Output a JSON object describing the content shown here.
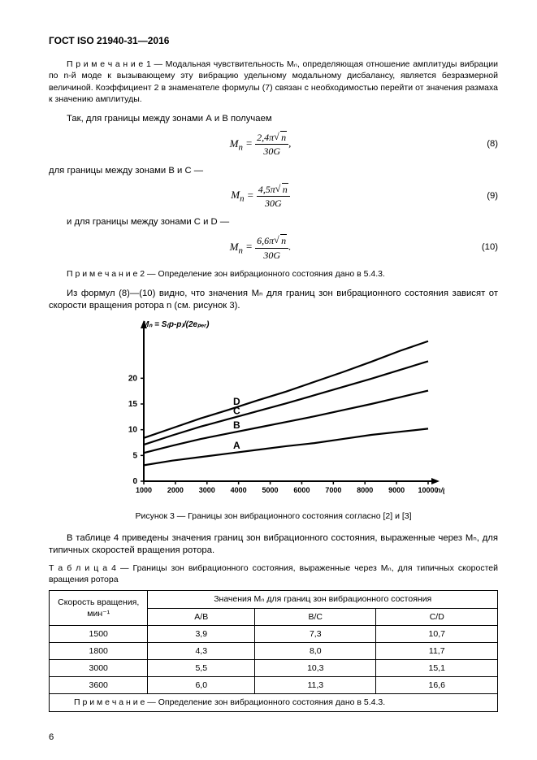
{
  "header": "ГОСТ ISO 21940-31—2016",
  "note1": "П р и м е ч а н и е  1 — Модальная чувствительность Mₙ, определяющая отношение амплитуды вибрации по n-й моде к вызывающему эту вибрацию удельному модальному дисбалансу, является безразмерной величиной. Коэффициент 2 в знаменателе формулы (7) связан с необходимостью перейти от значения размаха к значению амплитуды.",
  "p1": "Так, для границы между зонами А и В получаем",
  "eq8": {
    "label": "Mₙ =",
    "num": "2,4π",
    "n": "n",
    "den": "30G",
    "post": ",",
    "id": "(8)"
  },
  "p2": "для границы между зонами В и С —",
  "eq9": {
    "label": "Mₙ =",
    "num": "4,5π",
    "n": "n",
    "den": "30G",
    "post": "",
    "id": "(9)"
  },
  "p3": "и для границы между зонами С и D —",
  "eq10": {
    "label": "Mₙ =",
    "num": "6,6π",
    "n": "n",
    "den": "30G",
    "post": ".",
    "id": "(10)"
  },
  "note2": "П р и м е ч а н и е 2 — Определение зон вибрационного состояния дано в 5.4.3.",
  "p4": "Из формул (8)—(10) видно, что значения Mₙ для границ зон вибрационного состояния зависят от скорости вращения ротора n (см. рисунок 3).",
  "chart": {
    "ylabel_top": "Mₙ = S₍p-p₎/(2eₚₑᵣ)",
    "yticks": [
      0,
      5,
      10,
      15,
      20
    ],
    "yfont": 10,
    "xticks": [
      1000,
      2000,
      3000,
      4000,
      5000,
      6000,
      7000,
      8000,
      9000,
      10000
    ],
    "xfont": 9,
    "xunit": "n/(r/min)",
    "curve_labels": [
      "A",
      "B",
      "C",
      "D"
    ],
    "stroke": "#000000",
    "axis": "#000000",
    "curves": {
      "A": [
        [
          0,
          3.1
        ],
        [
          0.1,
          4.0
        ],
        [
          0.2,
          4.7
        ],
        [
          0.3,
          5.4
        ],
        [
          0.4,
          6.1
        ],
        [
          0.5,
          6.8
        ],
        [
          0.6,
          7.4
        ],
        [
          0.7,
          8.2
        ],
        [
          0.8,
          9.0
        ],
        [
          0.9,
          9.6
        ],
        [
          1.0,
          10.2
        ]
      ],
      "B": [
        [
          0,
          5.5
        ],
        [
          0.1,
          6.9
        ],
        [
          0.2,
          8.2
        ],
        [
          0.3,
          9.3
        ],
        [
          0.4,
          10.4
        ],
        [
          0.5,
          11.5
        ],
        [
          0.6,
          12.6
        ],
        [
          0.7,
          13.8
        ],
        [
          0.8,
          15.0
        ],
        [
          0.9,
          16.3
        ],
        [
          1.0,
          17.6
        ]
      ],
      "C": [
        [
          0,
          7.1
        ],
        [
          0.1,
          8.9
        ],
        [
          0.2,
          10.6
        ],
        [
          0.3,
          12.1
        ],
        [
          0.4,
          13.6
        ],
        [
          0.5,
          15.1
        ],
        [
          0.6,
          16.7
        ],
        [
          0.7,
          18.3
        ],
        [
          0.8,
          19.9
        ],
        [
          0.9,
          21.6
        ],
        [
          1.0,
          23.3
        ]
      ],
      "D": [
        [
          0,
          8.4
        ],
        [
          0.1,
          10.3
        ],
        [
          0.2,
          12.2
        ],
        [
          0.3,
          13.9
        ],
        [
          0.4,
          15.7
        ],
        [
          0.5,
          17.4
        ],
        [
          0.6,
          19.3
        ],
        [
          0.7,
          21.2
        ],
        [
          0.8,
          23.2
        ],
        [
          0.9,
          25.3
        ],
        [
          1.0,
          27.2
        ]
      ]
    },
    "ymax": 30
  },
  "chart_caption": "Рисунок 3 — Границы зон вибрационного состояния согласно [2] и [3]",
  "p5": "В таблице 4 приведены значения границ зон вибрационного состояния, выраженные через Mₙ, для типичных скоростей вращения ротора.",
  "table_caption": "Т а б л и ц а   4 — Границы зон вибрационного состояния, выраженные через Mₙ, для типичных скоростей вращения ротора",
  "table": {
    "col1_head_l1": "Скорость вращения,",
    "col1_head_l2": "мин⁻¹",
    "col_group_head": "Значения Mₙ для границ зон вибрационного состояния",
    "cols": [
      "A/B",
      "B/C",
      "C/D"
    ],
    "rows": [
      [
        "1500",
        "3,9",
        "7,3",
        "10,7"
      ],
      [
        "1800",
        "4,3",
        "8,0",
        "11,7"
      ],
      [
        "3000",
        "5,5",
        "10,3",
        "15,1"
      ],
      [
        "3600",
        "6,0",
        "11,3",
        "16,6"
      ]
    ],
    "note": "П р и м е ч а н и е — Определение зон вибрационного состояния дано в 5.4.3."
  },
  "pagenum": "6"
}
